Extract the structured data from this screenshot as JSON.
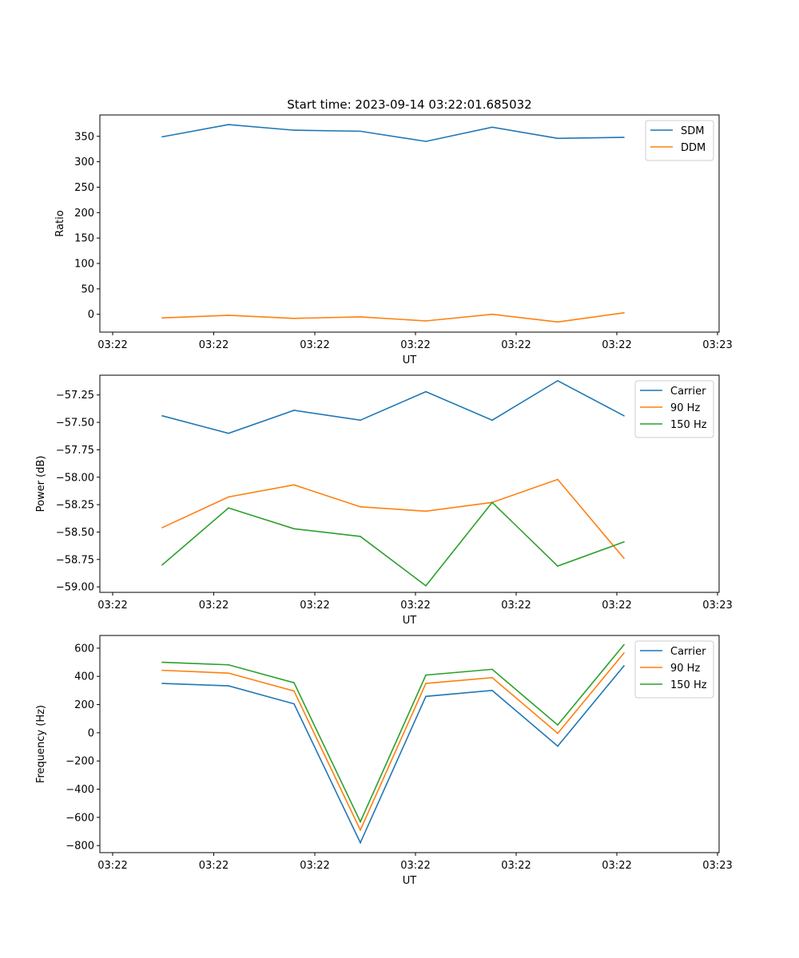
{
  "figure": {
    "title": "Start time: 2023-09-14 03:22:01.685032"
  },
  "chart_data": [
    {
      "type": "line",
      "xlabel": "UT",
      "ylabel": "Ratio",
      "x_tick_labels": [
        "03:22",
        "03:22",
        "03:22",
        "03:22",
        "03:22",
        "03:22",
        "03:23"
      ],
      "x_index_range": [
        -0.75,
        8.45
      ],
      "ylim": [
        -35,
        392
      ],
      "y_ticks": [
        0,
        50,
        100,
        150,
        200,
        250,
        300,
        350
      ],
      "y_tick_labels": [
        "0",
        "50",
        "100",
        "150",
        "200",
        "250",
        "300",
        "350"
      ],
      "legend_position": "top-right",
      "series": [
        {
          "name": "SDM",
          "color": "#1f77b4",
          "values": [
            349,
            373,
            362,
            360,
            340,
            368,
            346,
            348
          ]
        },
        {
          "name": "DDM",
          "color": "#ff7f0e",
          "values": [
            -7,
            -2,
            -8,
            -5,
            -13,
            0,
            -15,
            3
          ]
        }
      ]
    },
    {
      "type": "line",
      "xlabel": "UT",
      "ylabel": "Power (dB)",
      "x_tick_labels": [
        "03:22",
        "03:22",
        "03:22",
        "03:22",
        "03:22",
        "03:22",
        "03:23"
      ],
      "x_index_range": [
        -0.75,
        8.45
      ],
      "ylim": [
        -59.05,
        -57.07
      ],
      "y_ticks": [
        -59.0,
        -58.75,
        -58.5,
        -58.25,
        -58.0,
        -57.75,
        -57.5,
        -57.25
      ],
      "y_tick_labels": [
        "−59.00",
        "−58.75",
        "−58.50",
        "−58.25",
        "−58.00",
        "−57.75",
        "−57.50",
        "−57.25"
      ],
      "legend_position": "top-right",
      "series": [
        {
          "name": "Carrier",
          "color": "#1f77b4",
          "values": [
            -57.44,
            -57.6,
            -57.39,
            -57.48,
            -57.22,
            -57.48,
            -57.12,
            -57.44
          ]
        },
        {
          "name": "90 Hz",
          "color": "#ff7f0e",
          "values": [
            -58.46,
            -58.18,
            -58.07,
            -58.27,
            -58.31,
            -58.23,
            -58.02,
            -58.74
          ]
        },
        {
          "name": "150 Hz",
          "color": "#2ca02c",
          "values": [
            -58.8,
            -58.28,
            -58.47,
            -58.54,
            -58.99,
            -58.23,
            -58.81,
            -58.59
          ]
        }
      ]
    },
    {
      "type": "line",
      "xlabel": "UT",
      "ylabel": "Frequency (Hz)",
      "x_tick_labels": [
        "03:22",
        "03:22",
        "03:22",
        "03:22",
        "03:22",
        "03:22",
        "03:23"
      ],
      "x_index_range": [
        -0.75,
        8.45
      ],
      "ylim": [
        -850,
        690
      ],
      "y_ticks": [
        -800,
        -600,
        -400,
        -200,
        0,
        200,
        400,
        600
      ],
      "y_tick_labels": [
        "−800",
        "−600",
        "−400",
        "−200",
        "0",
        "200",
        "400",
        "600"
      ],
      "legend_position": "top-right",
      "series": [
        {
          "name": "Carrier",
          "color": "#1f77b4",
          "values": [
            350,
            333,
            205,
            -780,
            258,
            300,
            -95,
            475
          ]
        },
        {
          "name": "90 Hz",
          "color": "#ff7f0e",
          "values": [
            443,
            423,
            296,
            -690,
            350,
            391,
            -4,
            566
          ]
        },
        {
          "name": "150 Hz",
          "color": "#2ca02c",
          "values": [
            500,
            482,
            355,
            -631,
            409,
            450,
            55,
            625
          ]
        }
      ]
    }
  ]
}
